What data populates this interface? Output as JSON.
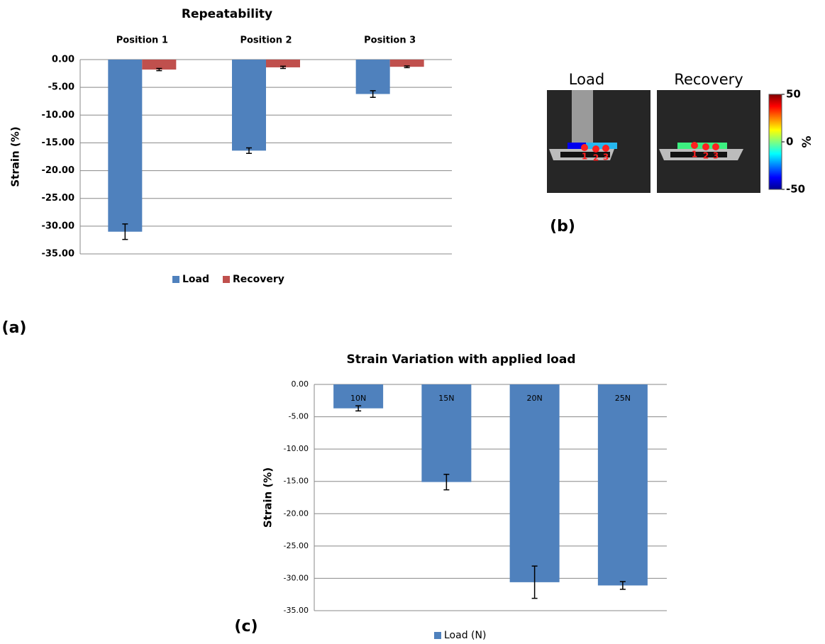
{
  "chart_data": [
    {
      "type": "bar",
      "panel": "(a)",
      "title": "Repeatability",
      "ylabel": "Strain (%)",
      "categories": [
        "Position 1",
        "Position 2",
        "Position 3"
      ],
      "series": [
        {
          "name": "Load",
          "color": "#4f81bd",
          "values": [
            -31.0,
            -16.4,
            -6.2
          ],
          "errors": [
            1.4,
            0.5,
            0.6
          ]
        },
        {
          "name": "Recovery",
          "color": "#c0504d",
          "values": [
            -1.8,
            -1.4,
            -1.3
          ],
          "errors": [
            0.2,
            0.2,
            0.15
          ]
        }
      ],
      "ylim": [
        -35,
        0
      ],
      "yticks": [
        {
          "value": 0,
          "label": "0.00"
        },
        {
          "value": -5,
          "label": "-5.00"
        },
        {
          "value": -10,
          "label": "-10.00"
        },
        {
          "value": -15,
          "label": "-15.00"
        },
        {
          "value": -20,
          "label": "-20.00"
        },
        {
          "value": -25,
          "label": "-25.00"
        },
        {
          "value": -30,
          "label": "-30.00"
        },
        {
          "value": -35,
          "label": "-35.00"
        }
      ],
      "grid": true,
      "legend": "bottom"
    },
    {
      "type": "image",
      "panel": "(b)",
      "image_titles": [
        "Load",
        "Recovery"
      ],
      "point_labels": [
        "1",
        "2",
        "3"
      ],
      "colorbar": {
        "label": "%",
        "clim": [
          -50,
          50
        ],
        "ticks": [
          50,
          0,
          -50
        ],
        "colormap": "jet"
      }
    },
    {
      "type": "bar",
      "panel": "(c)",
      "title": "Strain Variation with applied load",
      "ylabel": "Strain (%)",
      "categories": [
        "10N",
        "15N",
        "20N",
        "25N"
      ],
      "series": [
        {
          "name": "Load (N)",
          "color": "#4f81bd",
          "values": [
            -3.7,
            -15.1,
            -30.6,
            -31.1
          ],
          "errors": [
            0.4,
            1.2,
            2.5,
            0.6
          ]
        }
      ],
      "ylim": [
        -35,
        0
      ],
      "yticks": [
        {
          "value": 0,
          "label": "0.00"
        },
        {
          "value": -5,
          "label": "-5.00"
        },
        {
          "value": -10,
          "label": "-10.00"
        },
        {
          "value": -15,
          "label": "-15.00"
        },
        {
          "value": -20,
          "label": "-20.00"
        },
        {
          "value": -25,
          "label": "-25.00"
        },
        {
          "value": -30,
          "label": "-30.00"
        },
        {
          "value": -35,
          "label": "-35.00"
        }
      ],
      "grid": true,
      "legend": "bottom"
    }
  ]
}
